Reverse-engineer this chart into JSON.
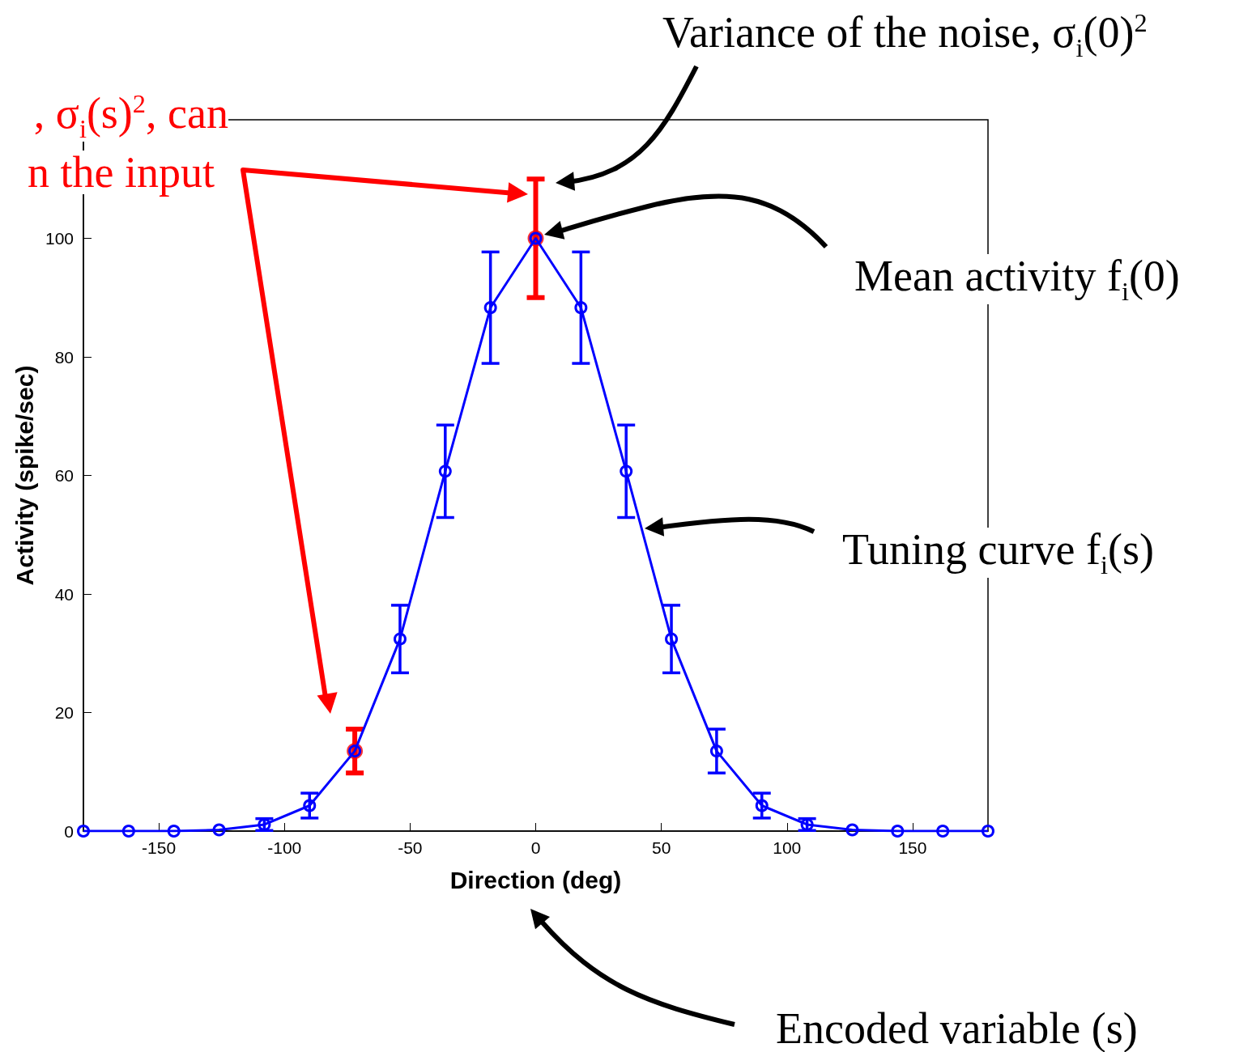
{
  "chart_data": {
    "type": "line",
    "xlabel": "Direction (deg)",
    "ylabel": "Activity (spike/sec)",
    "xlim": [
      -180,
      180
    ],
    "xticks": [
      -150,
      -100,
      -50,
      0,
      50,
      100,
      150
    ],
    "ylim": [
      0,
      120
    ],
    "yticks": [
      0,
      20,
      40,
      60,
      80,
      100
    ],
    "grid": false,
    "marker": "circle",
    "line_style": "solid",
    "series": [
      {
        "color": "#0000ff",
        "x": [
          -180,
          -162,
          -144,
          -126,
          -108,
          -90,
          -72,
          -54,
          -36,
          -18,
          0,
          18,
          36,
          54,
          72,
          90,
          108,
          126,
          144,
          162,
          180
        ],
        "values": [
          0,
          0,
          0,
          0.2,
          1.1,
          4.3,
          13.5,
          32.4,
          60.7,
          88.3,
          100,
          88.3,
          60.7,
          32.4,
          13.5,
          4.3,
          1.1,
          0.2,
          0,
          0,
          0
        ],
        "errors": [
          null,
          null,
          null,
          null,
          1.0,
          2.1,
          null,
          5.7,
          7.8,
          9.4,
          null,
          9.4,
          7.8,
          5.7,
          3.7,
          2.1,
          1.0,
          null,
          null,
          null,
          null
        ]
      },
      {
        "type": "scatter",
        "color": "#ff0000",
        "x": [
          -72,
          0
        ],
        "values": [
          13.5,
          100
        ],
        "errors": [
          3.7,
          10
        ]
      }
    ],
    "annotations": [
      ", σ$_{i}$(s)$^{2}$, can",
      "n the input",
      "Variance of the noise, σ$_{i}$(0)$^{2}$",
      "Mean activity f$_{i}$(0)",
      "Tuning curve f$_{i}$(s)",
      "Encoded variable (s)"
    ]
  }
}
